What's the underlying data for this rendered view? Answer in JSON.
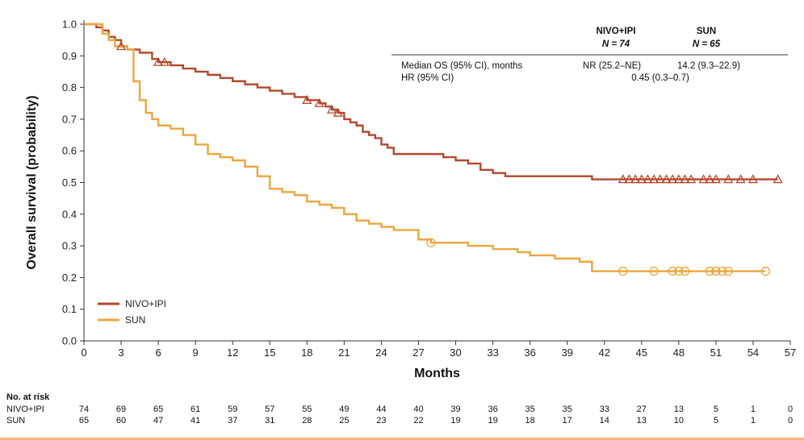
{
  "chart_data": {
    "type": "line",
    "subtype": "kaplan-meier",
    "xlabel": "Months",
    "ylabel": "Overall survival (probability)",
    "xlim": [
      0,
      57
    ],
    "ylim": [
      0,
      1.0
    ],
    "x_ticks": [
      0,
      3,
      6,
      9,
      12,
      15,
      18,
      21,
      24,
      27,
      30,
      33,
      36,
      39,
      42,
      45,
      48,
      51,
      54,
      57
    ],
    "y_ticks": [
      0.0,
      0.1,
      0.2,
      0.3,
      0.4,
      0.5,
      0.6,
      0.7,
      0.8,
      0.9,
      1.0
    ],
    "grid": false,
    "legend_position": "bottom-left",
    "series": [
      {
        "name": "NIVO+IPI",
        "color": "#b5482c",
        "x": [
          0,
          1,
          1.5,
          2,
          2.5,
          3,
          3.5,
          4,
          4.5,
          5.5,
          6,
          7,
          8,
          9,
          10,
          11,
          12,
          13,
          14,
          15,
          16,
          17,
          18,
          19,
          19.5,
          20,
          20.5,
          21,
          21.5,
          22,
          22.5,
          23,
          23.5,
          24,
          24.5,
          25,
          26,
          27,
          29,
          30,
          31,
          32,
          33,
          34,
          36,
          40,
          41,
          56
        ],
        "y": [
          1.0,
          0.99,
          0.98,
          0.96,
          0.95,
          0.93,
          0.92,
          0.92,
          0.91,
          0.89,
          0.88,
          0.87,
          0.86,
          0.85,
          0.84,
          0.83,
          0.82,
          0.81,
          0.8,
          0.79,
          0.78,
          0.77,
          0.76,
          0.75,
          0.74,
          0.73,
          0.72,
          0.7,
          0.69,
          0.68,
          0.66,
          0.65,
          0.64,
          0.62,
          0.61,
          0.59,
          0.59,
          0.59,
          0.58,
          0.57,
          0.56,
          0.54,
          0.53,
          0.52,
          0.52,
          0.52,
          0.51,
          0.51
        ],
        "censor_x": [
          3,
          6,
          6.5,
          18,
          19,
          20,
          20.5,
          43.5,
          44,
          44.5,
          45,
          45.5,
          46,
          46.5,
          47,
          47.5,
          48,
          48.5,
          49,
          50,
          50.5,
          51,
          52,
          53,
          54,
          56
        ]
      },
      {
        "name": "SUN",
        "color": "#eba63c",
        "x": [
          0,
          1.5,
          2,
          2.5,
          3,
          3.5,
          4,
          4.5,
          5,
          5.5,
          6,
          7,
          8,
          9,
          10,
          11,
          12,
          13,
          14,
          15,
          16,
          17,
          18,
          19,
          20,
          21,
          22,
          23,
          24,
          25,
          27,
          28,
          29,
          31,
          33,
          35,
          36,
          38,
          40,
          41,
          55
        ],
        "y": [
          1.0,
          0.97,
          0.95,
          0.93,
          0.93,
          0.92,
          0.82,
          0.76,
          0.72,
          0.7,
          0.68,
          0.67,
          0.65,
          0.62,
          0.59,
          0.58,
          0.57,
          0.55,
          0.52,
          0.48,
          0.47,
          0.46,
          0.44,
          0.43,
          0.42,
          0.4,
          0.38,
          0.37,
          0.36,
          0.35,
          0.32,
          0.31,
          0.31,
          0.3,
          0.29,
          0.28,
          0.27,
          0.26,
          0.25,
          0.22,
          0.22
        ],
        "censor_x": [
          28,
          43.5,
          46,
          47.5,
          48,
          48.5,
          50.5,
          51,
          51.5,
          52,
          55
        ]
      }
    ],
    "stats_table": {
      "header_arm1": "NIVO+IPI",
      "header_arm1_n": "N = 74",
      "header_arm2": "SUN",
      "header_arm2_n": "N = 65",
      "rows": [
        {
          "label": "Median OS (95% CI), months",
          "arm1": "NR (25.2–NE)",
          "arm2": "14.2 (9.3–22.9)"
        },
        {
          "label": "HR (95% CI)",
          "combined": "0.45 (0.3–0.7)"
        }
      ]
    },
    "risk_table": {
      "title": "No. at risk",
      "rows": [
        {
          "label": "NIVO+IPI",
          "values": [
            74,
            69,
            65,
            61,
            59,
            57,
            55,
            49,
            44,
            40,
            39,
            36,
            35,
            35,
            33,
            27,
            13,
            5,
            1,
            0
          ]
        },
        {
          "label": "SUN",
          "values": [
            65,
            60,
            47,
            41,
            37,
            31,
            28,
            25,
            23,
            22,
            19,
            19,
            18,
            17,
            14,
            13,
            10,
            5,
            1,
            0
          ]
        }
      ]
    }
  }
}
